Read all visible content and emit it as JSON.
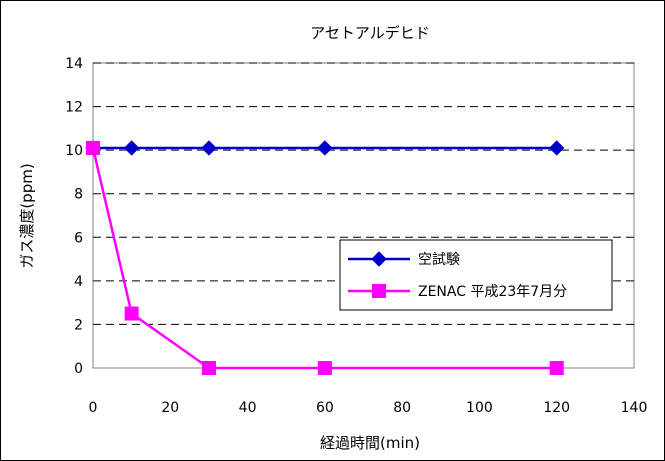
{
  "chart_data": {
    "type": "line",
    "title": "アセトアルデヒド",
    "xlabel": "経過時間(min)",
    "ylabel": "ガス濃度(ppm)",
    "xlim": [
      0,
      140
    ],
    "ylim": [
      0,
      14
    ],
    "xticks": [
      0,
      20,
      40,
      60,
      80,
      100,
      120,
      140
    ],
    "yticks": [
      0,
      2,
      4,
      6,
      8,
      10,
      12,
      14
    ],
    "grid": "horizontal dashed",
    "legend_position": "center-right",
    "series": [
      {
        "name": "空試験",
        "color": "#0000CC",
        "marker": "diamond",
        "x": [
          0,
          10,
          30,
          60,
          120
        ],
        "y": [
          10.1,
          10.1,
          10.1,
          10.1,
          10.1
        ]
      },
      {
        "name": "ZENAC 平成23年7月分",
        "color": "#FF00FF",
        "marker": "square",
        "x": [
          0,
          10,
          30,
          60,
          120
        ],
        "y": [
          10.1,
          2.5,
          0,
          0,
          0
        ]
      }
    ]
  }
}
